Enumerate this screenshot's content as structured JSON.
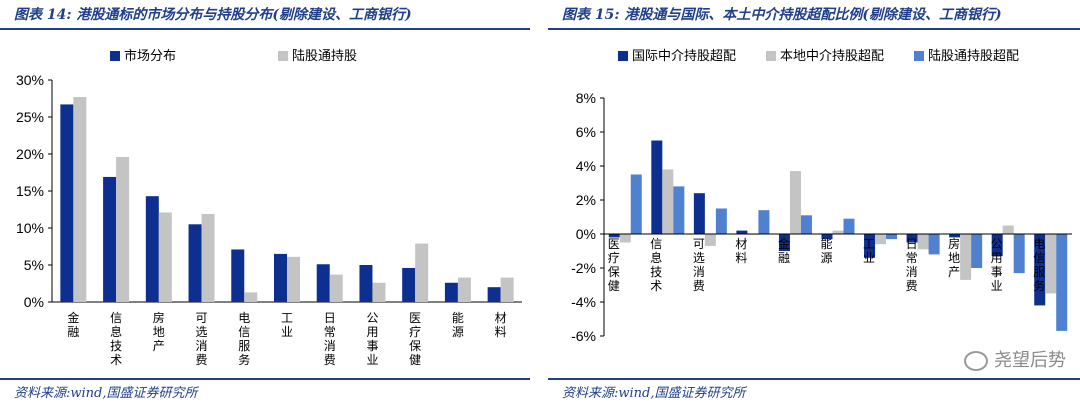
{
  "left_panel": {
    "title": "图表 14:  港股通标的市场分布与持股分布(剔除建设、工商银行)",
    "source": "资料来源:wind,国盛证券研究所"
  },
  "right_panel": {
    "title": "图表 15:  港股通与国际、本土中介持股超配比例(剔除建设、工商银行)",
    "source": "资料来源:wind,国盛证券研究所"
  },
  "watermark": "尧望后势",
  "colors": {
    "dark_blue": "#0d2f8f",
    "gray": "#c4c4c4",
    "light_blue": "#4f81d0",
    "title_blue": "#1f3f8c"
  },
  "chart_data": [
    {
      "type": "bar",
      "categories": [
        "金融",
        "信息技术",
        "房地产",
        "可选消费",
        "电信服务",
        "工业",
        "日常消费",
        "公用事业",
        "医疗保健",
        "能源",
        "材料"
      ],
      "series": [
        {
          "name": "市场分布",
          "color": "#0d2f8f",
          "values": [
            26.7,
            16.9,
            14.3,
            10.5,
            7.1,
            6.5,
            5.1,
            5.0,
            4.6,
            2.6,
            2.0
          ]
        },
        {
          "name": "陆股通持股",
          "color": "#c4c4c4",
          "values": [
            27.7,
            19.6,
            12.1,
            11.9,
            1.3,
            6.1,
            3.7,
            2.6,
            7.9,
            3.3,
            3.3
          ]
        }
      ],
      "ylim": [
        0,
        30
      ],
      "yticks": [
        "0%",
        "5%",
        "10%",
        "15%",
        "20%",
        "25%",
        "30%"
      ],
      "legend": "top-left"
    },
    {
      "type": "bar",
      "categories": [
        "医疗保健",
        "信息技术",
        "可选消费",
        "材料",
        "金融",
        "能源",
        "工业",
        "日常消费",
        "房地产",
        "公用事业",
        "电信服务"
      ],
      "series": [
        {
          "name": "国际中介持股超配",
          "color": "#0d2f8f",
          "values": [
            -0.2,
            5.5,
            2.4,
            0.2,
            -1.0,
            -0.3,
            -1.4,
            -0.5,
            -0.2,
            -1.3,
            -4.2
          ]
        },
        {
          "name": "本地中介持股超配",
          "color": "#c4c4c4",
          "values": [
            -0.5,
            3.8,
            -0.7,
            0.0,
            3.7,
            0.2,
            -0.6,
            -0.9,
            -2.7,
            0.5,
            -3.5
          ]
        },
        {
          "name": "陆股通持股超配",
          "color": "#4f81d0",
          "values": [
            3.5,
            2.8,
            1.5,
            1.4,
            1.1,
            0.9,
            -0.3,
            -1.2,
            -2.0,
            -2.3,
            -5.7
          ]
        }
      ],
      "ylim": [
        -6,
        8
      ],
      "yticks": [
        "-6%",
        "-4%",
        "-2%",
        "0%",
        "2%",
        "4%",
        "6%",
        "8%"
      ],
      "legend": "top"
    }
  ]
}
